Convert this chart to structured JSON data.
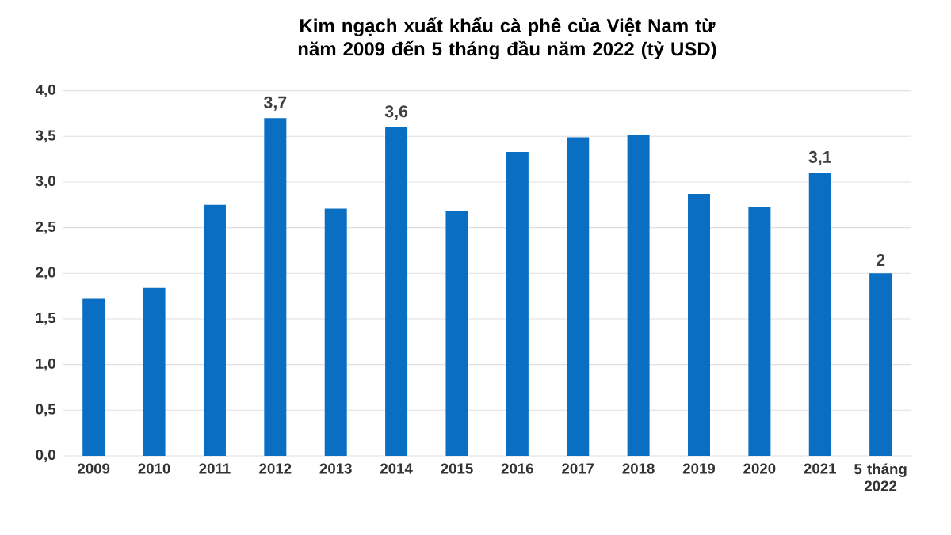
{
  "chart_data": {
    "type": "bar",
    "title": "Kim ngạch xuất khẩu cà phê của Việt Nam từ năm 2009 đến 5 tháng đầu năm 2022 (tỷ USD)",
    "categories": [
      "2009",
      "2010",
      "2011",
      "2012",
      "2013",
      "2014",
      "2015",
      "2016",
      "2017",
      "2018",
      "2019",
      "2020",
      "2021",
      "5 tháng 2022"
    ],
    "values": [
      1.72,
      1.84,
      2.75,
      3.7,
      2.71,
      3.6,
      2.68,
      3.33,
      3.49,
      3.52,
      2.87,
      2.73,
      3.1,
      2.0
    ],
    "value_labels": [
      null,
      null,
      null,
      "3,7",
      null,
      "3,6",
      null,
      null,
      null,
      null,
      null,
      null,
      "3,1",
      "2"
    ],
    "color": "#0a6fc2",
    "ylim": [
      0,
      4
    ],
    "yticks": [
      {
        "value": 0,
        "label": "0,0"
      },
      {
        "value": 0.5,
        "label": "0,5"
      },
      {
        "value": 1,
        "label": "1,0"
      },
      {
        "value": 1.5,
        "label": "1,5"
      },
      {
        "value": 2,
        "label": "2,0"
      },
      {
        "value": 2.5,
        "label": "2,5"
      },
      {
        "value": 3,
        "label": "3,0"
      },
      {
        "value": 3.5,
        "label": "3,5"
      },
      {
        "value": 4,
        "label": "4,0"
      }
    ],
    "grid": "y"
  }
}
